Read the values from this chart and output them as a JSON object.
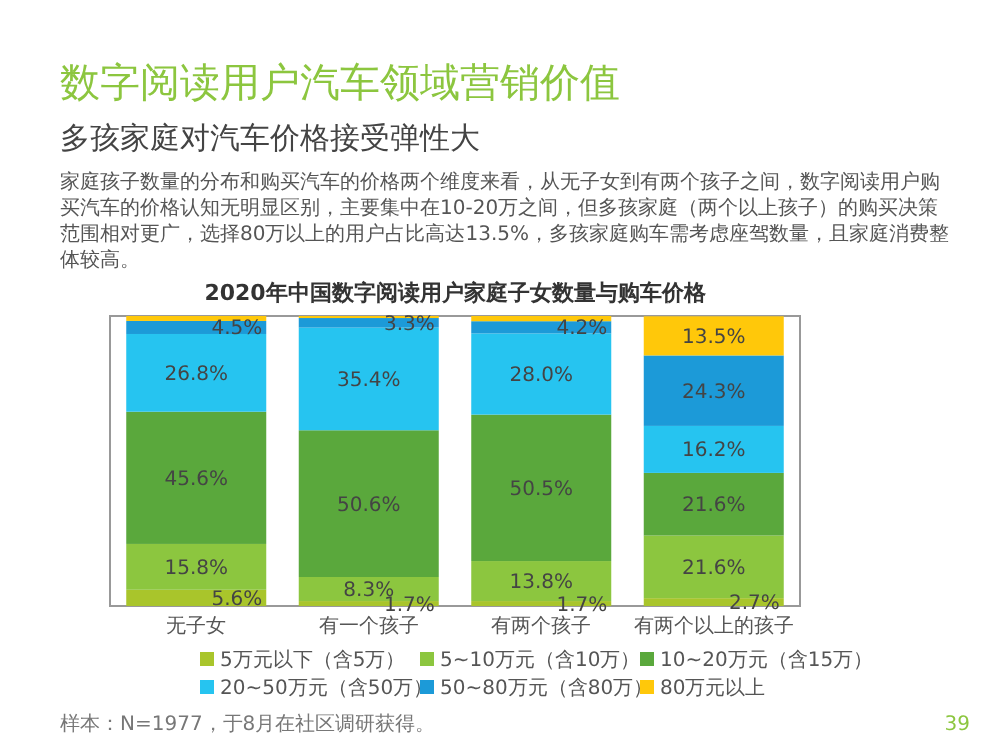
{
  "chart_data": {
    "type": "bar",
    "stacked": true,
    "title": "数字阅读用户汽车领域营销价值",
    "subtitle": "多孩家庭对汽车价格接受弹性大",
    "annotations": [
      "家庭孩子数量的分布和购买汽车的价格两个维度来看，从无子女到有两个孩子之间，数字阅读用户购买汽车的价格认知无明显区别，主要集中在10-20万之间，但多孩家庭（两个以上孩子）的购买决策范围相对更广，选择80万以上的用户占比高达13.5%，多孩家庭购车需考虑座驾数量，且家庭消费整体较高。",
      "2020年中国数字阅读用户家庭子女数量与购车价格",
      "样本：N=1977，于8月在社区调研获得。",
      "39"
    ],
    "categories": [
      "无子女",
      "有一个孩子",
      "有两个孩子",
      "有两个以上的孩子"
    ],
    "series": [
      {
        "name": "5万元以下（含5万）",
        "color": "#a9c52b",
        "values": [
          5.6,
          1.7,
          1.7,
          2.7
        ],
        "value_labels": [
          "5.6%",
          "1.7%",
          "1.7%",
          "2.7%"
        ]
      },
      {
        "name": "5~10万元（含10万）",
        "color": "#8cc63f",
        "values": [
          15.8,
          8.3,
          13.8,
          21.6
        ],
        "value_labels": [
          "15.8%",
          "8.3%",
          "13.8%",
          "21.6%"
        ]
      },
      {
        "name": "10~20万元（含15万）",
        "color": "#5aa83c",
        "values": [
          45.6,
          50.6,
          50.5,
          21.6
        ],
        "value_labels": [
          "45.6%",
          "50.6%",
          "50.5%",
          "21.6%"
        ]
      },
      {
        "name": "20~50万元（含50万）",
        "color": "#26c4f0",
        "values": [
          26.8,
          35.4,
          28.0,
          16.2
        ],
        "value_labels": [
          "26.8%",
          "35.4%",
          "28.0%",
          "16.2%"
        ]
      },
      {
        "name": "50~80万元（含80万）",
        "color": "#1c9ad8",
        "values": [
          4.5,
          3.3,
          4.2,
          24.3
        ],
        "value_labels": [
          "4.5%",
          "3.3%",
          "4.2%",
          "24.3%"
        ]
      },
      {
        "name": "80万元以上",
        "color": "#ffc80a",
        "values": [
          1.7,
          0.7,
          1.8,
          13.5
        ],
        "value_labels": [
          null,
          null,
          null,
          "13.5%"
        ]
      }
    ],
    "legend": "bottom"
  }
}
